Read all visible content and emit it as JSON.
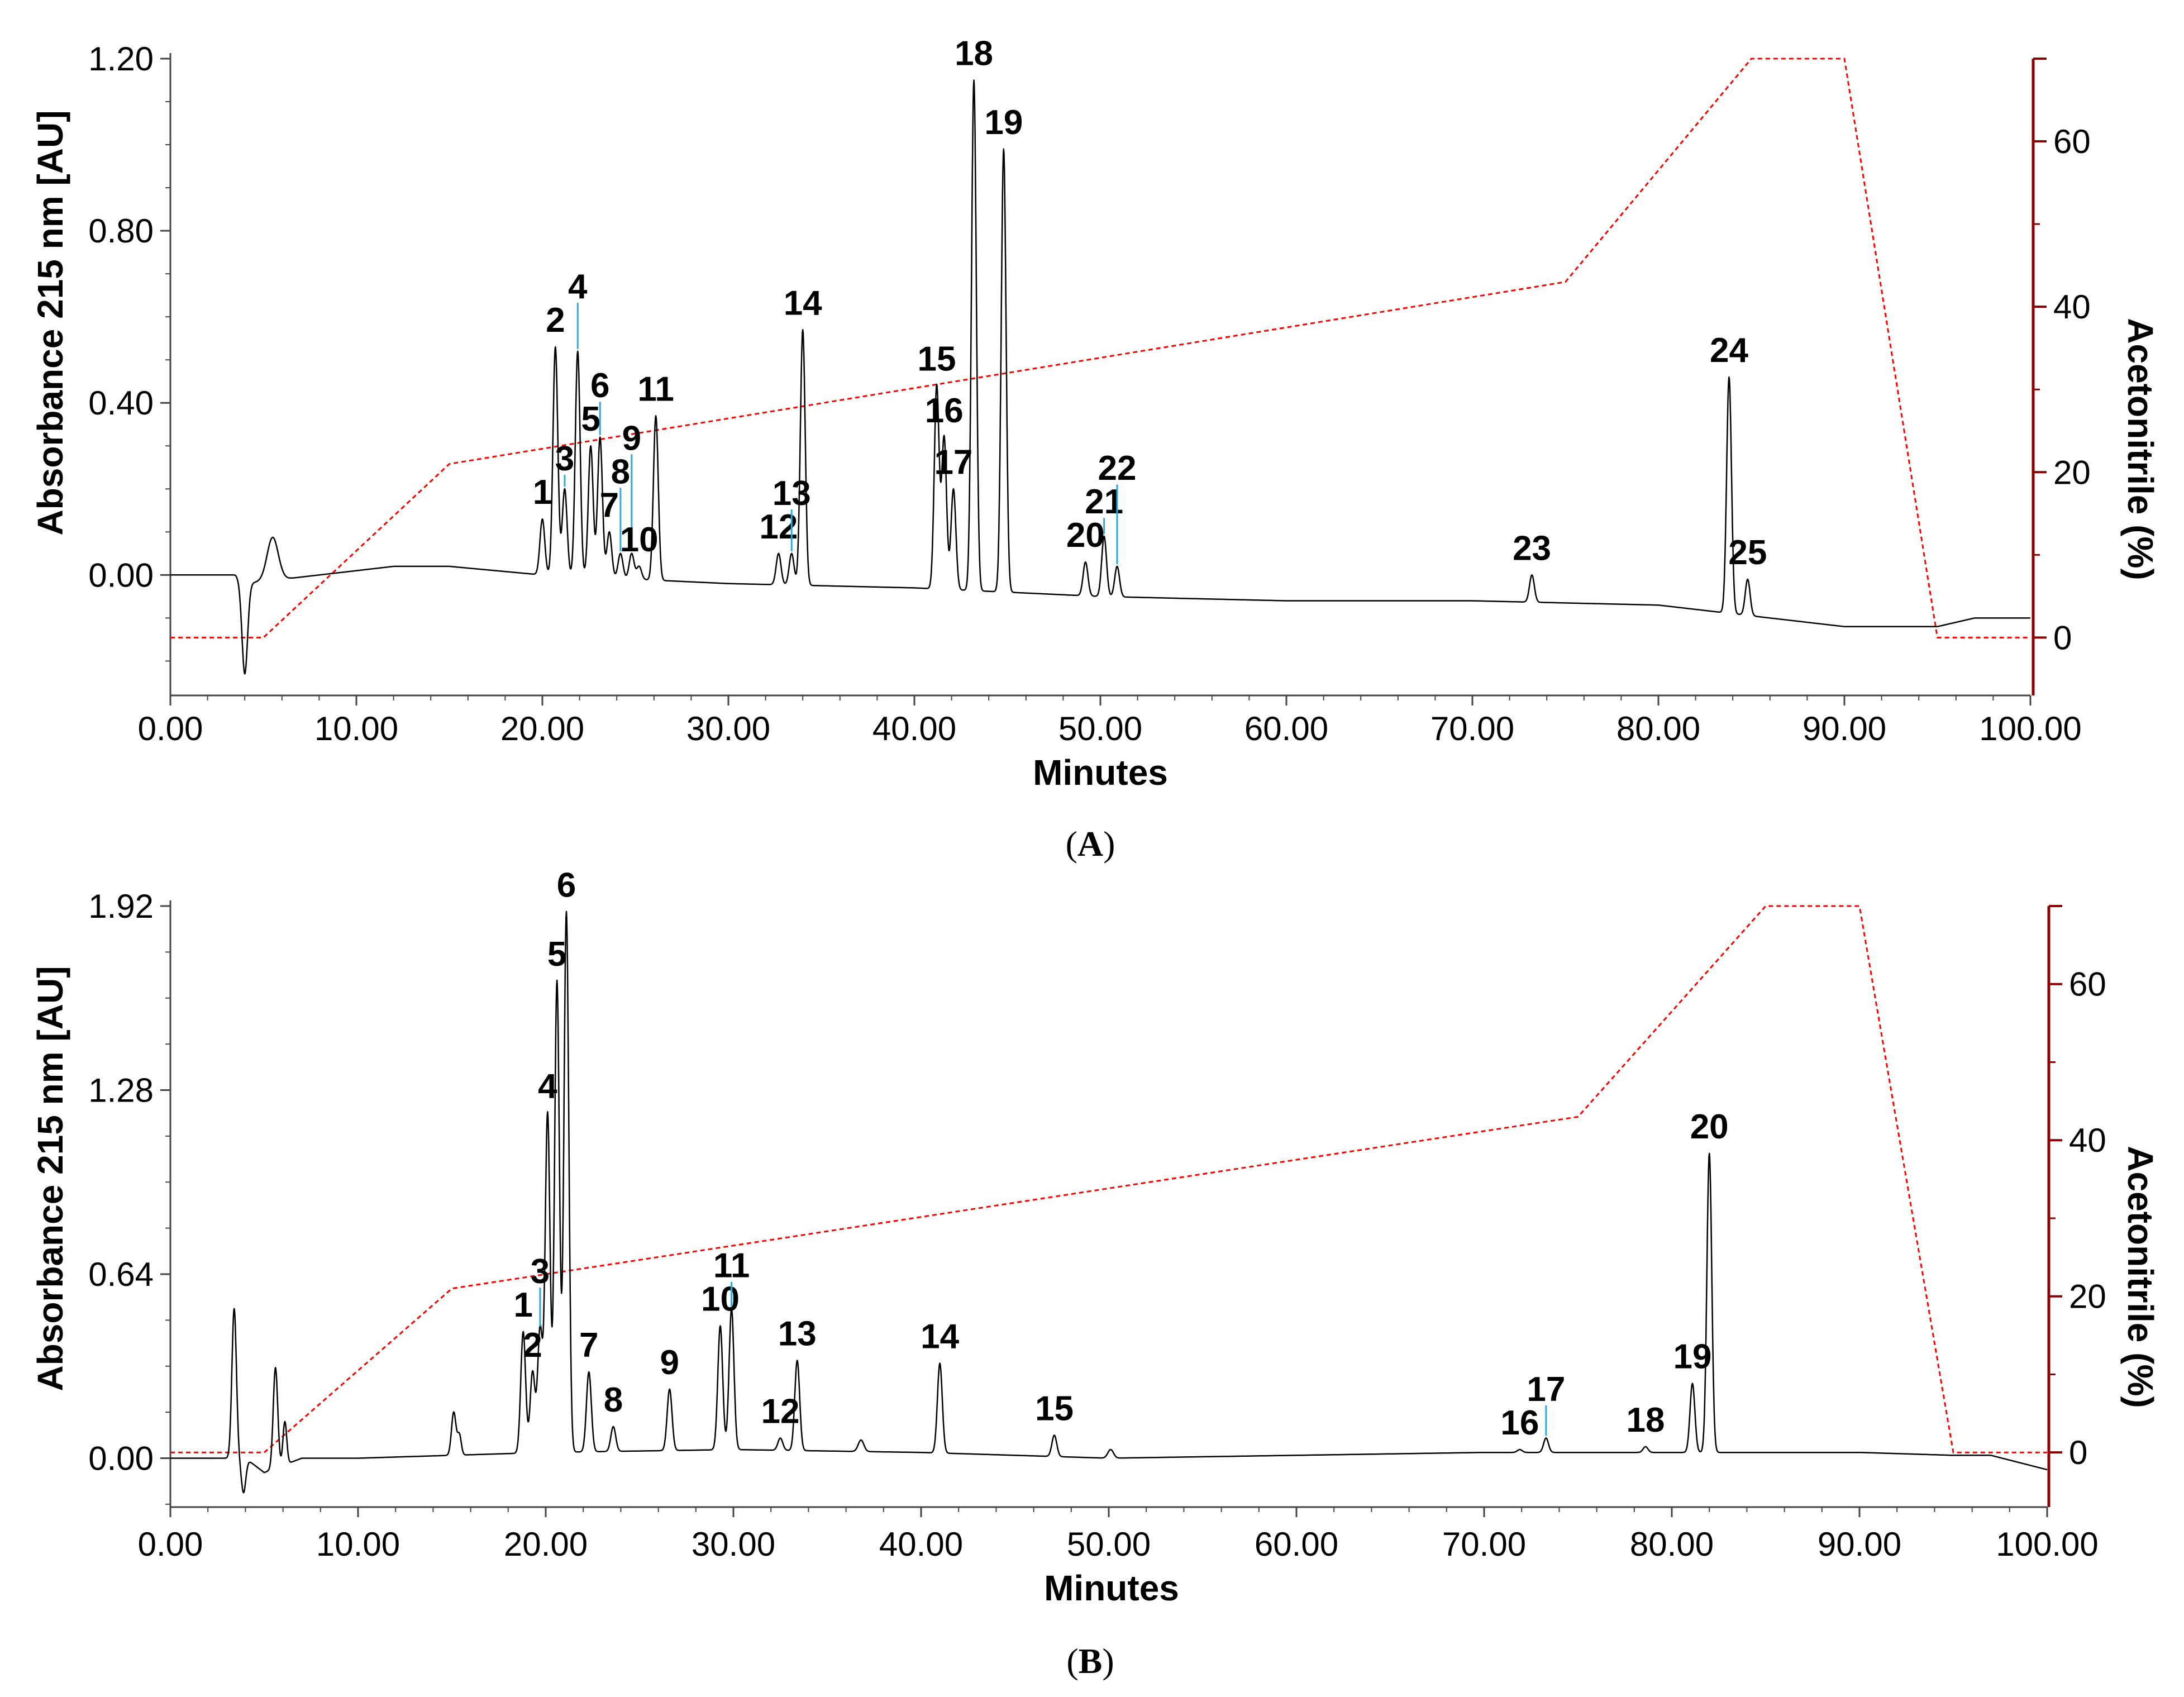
{
  "colors": {
    "trace": "#000000",
    "gradient": "#ff0000",
    "right_axis": "#8b0000",
    "leader": "#29abe2"
  },
  "chart_data": [
    {
      "type": "line",
      "caption_letter": "A",
      "xlabel": "Minutes",
      "ylabel": "Absorbance 215 nm [AU]",
      "y2label": "Acetonitrile (%)",
      "xlim": [
        0,
        100
      ],
      "ylim": [
        -0.28,
        1.2
      ],
      "y2lim": [
        -7,
        70
      ],
      "x_ticks": [
        "0.00",
        "10.00",
        "20.00",
        "30.00",
        "40.00",
        "50.00",
        "60.00",
        "70.00",
        "80.00",
        "90.00",
        "100.00"
      ],
      "y_ticks": [
        "0.00",
        "0.40",
        "0.80",
        "1.20"
      ],
      "y2_ticks": [
        "0",
        "20",
        "40",
        "60"
      ],
      "grid": false,
      "baseline": [
        [
          0,
          0.0
        ],
        [
          3.5,
          0.0
        ],
        [
          4,
          -0.02
        ],
        [
          12,
          0.02
        ],
        [
          15,
          0.02
        ],
        [
          20,
          0.0
        ],
        [
          30,
          -0.02
        ],
        [
          40,
          -0.03
        ],
        [
          50,
          -0.05
        ],
        [
          60,
          -0.06
        ],
        [
          70,
          -0.06
        ],
        [
          80,
          -0.07
        ],
        [
          90,
          -0.12
        ],
        [
          95,
          -0.12
        ],
        [
          97,
          -0.1
        ],
        [
          100,
          -0.1
        ]
      ],
      "disturbances": [
        {
          "x": 4.0,
          "h": -0.21,
          "w": 0.15
        },
        {
          "x": 5.5,
          "h": 0.1,
          "w": 0.3
        }
      ],
      "peaks": [
        {
          "label": "1",
          "x": 20.0,
          "y": 0.13
        },
        {
          "label": "2",
          "x": 20.7,
          "y": 0.53
        },
        {
          "label": "3",
          "x": 21.2,
          "y": 0.2
        },
        {
          "label": "4",
          "x": 21.9,
          "y": 0.52
        },
        {
          "label": "5",
          "x": 22.6,
          "y": 0.3
        },
        {
          "label": "6",
          "x": 23.1,
          "y": 0.32
        },
        {
          "label": "7",
          "x": 23.6,
          "y": 0.1
        },
        {
          "label": "8",
          "x": 24.2,
          "y": 0.05
        },
        {
          "label": "9",
          "x": 24.8,
          "y": 0.05
        },
        {
          "label": "10",
          "x": 25.2,
          "y": 0.02
        },
        {
          "label": "11",
          "x": 26.1,
          "y": 0.37
        },
        {
          "label": "12",
          "x": 32.7,
          "y": 0.05
        },
        {
          "label": "13",
          "x": 33.4,
          "y": 0.05
        },
        {
          "label": "14",
          "x": 34.0,
          "y": 0.57
        },
        {
          "label": "15",
          "x": 41.2,
          "y": 0.44
        },
        {
          "label": "16",
          "x": 41.6,
          "y": 0.32
        },
        {
          "label": "17",
          "x": 42.1,
          "y": 0.2
        },
        {
          "label": "18",
          "x": 43.2,
          "y": 1.15
        },
        {
          "label": "19",
          "x": 44.8,
          "y": 0.99
        },
        {
          "label": "20",
          "x": 49.2,
          "y": 0.03
        },
        {
          "label": "21",
          "x": 50.2,
          "y": 0.09
        },
        {
          "label": "22",
          "x": 50.9,
          "y": 0.02
        },
        {
          "label": "23",
          "x": 73.2,
          "y": 0.0
        },
        {
          "label": "24",
          "x": 83.8,
          "y": 0.46
        },
        {
          "label": "25",
          "x": 84.8,
          "y": -0.01
        }
      ],
      "gradient": {
        "x": [
          0,
          5,
          15,
          75,
          85,
          90,
          95,
          100
        ],
        "y": [
          0,
          0,
          21,
          43,
          70,
          70,
          0,
          0
        ]
      }
    },
    {
      "type": "line",
      "caption_letter": "B",
      "xlabel": "Minutes",
      "ylabel": "Absorbance 215 nm [AU]",
      "y2label": "Acetonitrile (%)",
      "xlim": [
        0,
        100
      ],
      "ylim": [
        -0.17,
        1.92
      ],
      "y2lim": [
        -7,
        70
      ],
      "x_ticks": [
        "0.00",
        "10.00",
        "20.00",
        "30.00",
        "40.00",
        "50.00",
        "60.00",
        "70.00",
        "80.00",
        "90.00",
        "100.00"
      ],
      "y_ticks": [
        "0.00",
        "0.64",
        "1.28",
        "1.92"
      ],
      "y2_ticks": [
        "0",
        "20",
        "40",
        "60"
      ],
      "grid": false,
      "baseline": [
        [
          0,
          0.0
        ],
        [
          4,
          0.0
        ],
        [
          5,
          -0.05
        ],
        [
          7,
          0.0
        ],
        [
          10,
          0.0
        ],
        [
          20,
          0.02
        ],
        [
          30,
          0.03
        ],
        [
          40,
          0.02
        ],
        [
          50,
          0.0
        ],
        [
          60,
          0.01
        ],
        [
          70,
          0.02
        ],
        [
          80,
          0.02
        ],
        [
          90,
          0.02
        ],
        [
          95,
          0.01
        ],
        [
          97,
          0.01
        ],
        [
          100,
          -0.04
        ]
      ],
      "disturbances": [
        {
          "x": 3.4,
          "h": 0.52,
          "w": 0.12
        },
        {
          "x": 3.9,
          "h": -0.12,
          "w": 0.12
        },
        {
          "x": 5.6,
          "h": 0.35,
          "w": 0.12
        },
        {
          "x": 6.1,
          "h": 0.15,
          "w": 0.1
        },
        {
          "x": 15.1,
          "h": 0.15,
          "w": 0.12
        },
        {
          "x": 15.4,
          "h": 0.07,
          "w": 0.1
        },
        {
          "x": 36.8,
          "h": 0.04,
          "w": 0.15
        },
        {
          "x": 50.1,
          "h": 0.03,
          "w": 0.15
        }
      ],
      "peaks": [
        {
          "label": "1",
          "x": 18.8,
          "y": 0.44
        },
        {
          "label": "2",
          "x": 19.3,
          "y": 0.3
        },
        {
          "label": "3",
          "x": 19.7,
          "y": 0.45
        },
        {
          "label": "4",
          "x": 20.1,
          "y": 1.2
        },
        {
          "label": "5",
          "x": 20.6,
          "y": 1.66
        },
        {
          "label": "6",
          "x": 21.1,
          "y": 1.9
        },
        {
          "label": "7",
          "x": 22.3,
          "y": 0.3
        },
        {
          "label": "8",
          "x": 23.6,
          "y": 0.11
        },
        {
          "label": "9",
          "x": 26.6,
          "y": 0.24
        },
        {
          "label": "10",
          "x": 29.3,
          "y": 0.46
        },
        {
          "label": "11",
          "x": 29.9,
          "y": 0.52
        },
        {
          "label": "12",
          "x": 32.5,
          "y": 0.07
        },
        {
          "label": "13",
          "x": 33.4,
          "y": 0.34
        },
        {
          "label": "14",
          "x": 41.0,
          "y": 0.33
        },
        {
          "label": "15",
          "x": 47.1,
          "y": 0.08
        },
        {
          "label": "16",
          "x": 71.9,
          "y": 0.03
        },
        {
          "label": "17",
          "x": 73.3,
          "y": 0.07
        },
        {
          "label": "18",
          "x": 78.6,
          "y": 0.04
        },
        {
          "label": "19",
          "x": 81.1,
          "y": 0.26
        },
        {
          "label": "20",
          "x": 82.0,
          "y": 1.06
        }
      ],
      "gradient": {
        "x": [
          0,
          5,
          15,
          75,
          85,
          90,
          95,
          100
        ],
        "y": [
          0,
          0,
          21,
          43,
          70,
          70,
          0,
          0
        ]
      }
    }
  ]
}
